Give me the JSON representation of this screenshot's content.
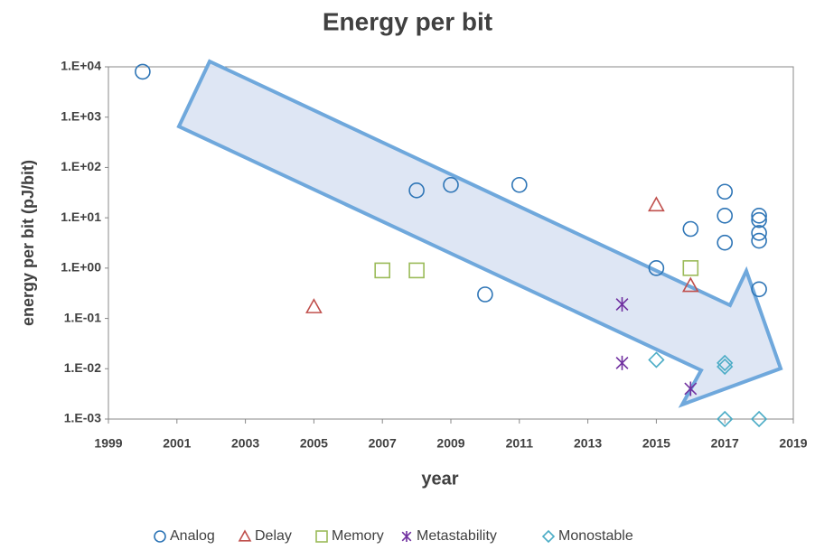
{
  "chart_data": {
    "type": "scatter",
    "title": "Energy per bit",
    "xlabel": "year",
    "ylabel": "energy per bit (pJ/bit)",
    "xlim": [
      1999,
      2019
    ],
    "xticks": [
      1999,
      2001,
      2003,
      2005,
      2007,
      2009,
      2011,
      2013,
      2015,
      2017,
      2019
    ],
    "ylim": [
      0.001,
      10000
    ],
    "ylog": true,
    "yticks": [
      {
        "value": 10000,
        "label": "1.E+04"
      },
      {
        "value": 1000,
        "label": "1.E+03"
      },
      {
        "value": 100,
        "label": "1.E+02"
      },
      {
        "value": 10,
        "label": "1.E+01"
      },
      {
        "value": 1,
        "label": "1.E+00"
      },
      {
        "value": 0.1,
        "label": "1.E-01"
      },
      {
        "value": 0.01,
        "label": "1.E-02"
      },
      {
        "value": 0.001,
        "label": "1.E-03"
      }
    ],
    "grid": false,
    "legend": "bottom",
    "series": [
      {
        "name": "Analog",
        "color": "#2e75b6",
        "marker": "circle",
        "x": [
          2000,
          2008,
          2009,
          2011,
          2010,
          2015,
          2016,
          2017,
          2017,
          2017,
          2018,
          2018,
          2018,
          2018,
          2018
        ],
        "values": [
          8000,
          35,
          45,
          45,
          0.3,
          1.0,
          6,
          33,
          11,
          3.2,
          11,
          9,
          5,
          3.5,
          0.38
        ]
      },
      {
        "name": "Delay",
        "color": "#c0504d",
        "marker": "triangle",
        "x": [
          2005,
          2015,
          2016
        ],
        "values": [
          0.17,
          18,
          0.45
        ]
      },
      {
        "name": "Memory",
        "color": "#9bbb59",
        "marker": "square",
        "x": [
          2007,
          2008,
          2016
        ],
        "values": [
          0.9,
          0.9,
          1.0
        ]
      },
      {
        "name": "Metastability",
        "color": "#7030a0",
        "marker": "asterisk",
        "x": [
          2014,
          2014,
          2016
        ],
        "values": [
          0.19,
          0.013,
          0.004
        ]
      },
      {
        "name": "Monostable",
        "color": "#4bacc6",
        "marker": "diamond",
        "x": [
          2015,
          2017,
          2017,
          2017,
          2018
        ],
        "values": [
          0.015,
          0.013,
          0.011,
          0.001,
          0.001
        ]
      }
    ]
  }
}
